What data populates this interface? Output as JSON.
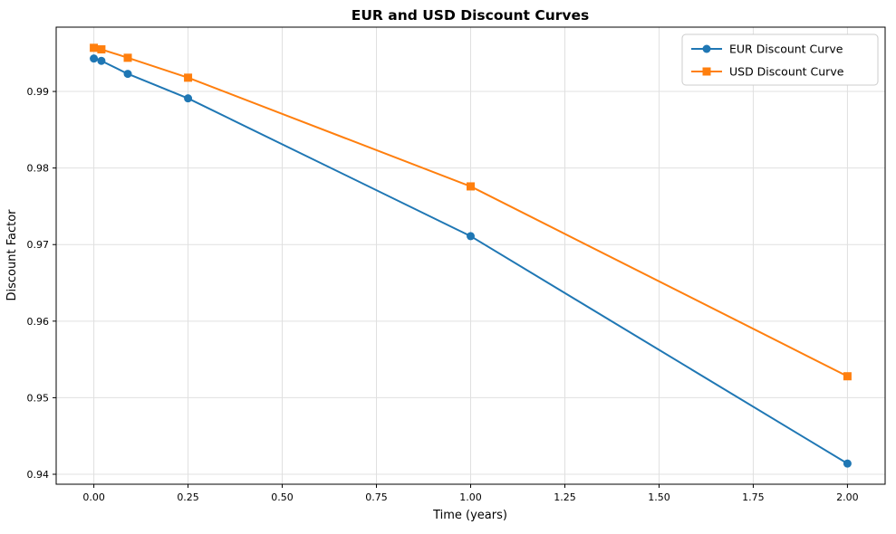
{
  "chart_data": {
    "type": "line",
    "title": "EUR and USD Discount Curves",
    "xlabel": "Time (years)",
    "ylabel": "Discount Factor",
    "xlim": [
      -0.1,
      2.1
    ],
    "ylim": [
      0.9387,
      0.9984
    ],
    "xticks": [
      0.0,
      0.25,
      0.5,
      0.75,
      1.0,
      1.25,
      1.5,
      1.75,
      2.0
    ],
    "xtick_labels": [
      "0.00",
      "0.25",
      "0.50",
      "0.75",
      "1.00",
      "1.25",
      "1.50",
      "1.75",
      "2.00"
    ],
    "yticks": [
      0.94,
      0.95,
      0.96,
      0.97,
      0.98,
      0.99
    ],
    "ytick_labels": [
      "0.94",
      "0.95",
      "0.96",
      "0.97",
      "0.98",
      "0.99"
    ],
    "grid": true,
    "legend_position": "upper right",
    "x": [
      0.0,
      0.02,
      0.09,
      0.25,
      1.0,
      2.0
    ],
    "series": [
      {
        "name": "EUR Discount Curve",
        "color": "#1f77b4",
        "marker": "circle",
        "values": [
          0.9943,
          0.994,
          0.9923,
          0.9891,
          0.9711,
          0.9414
        ]
      },
      {
        "name": "USD Discount Curve",
        "color": "#ff7f0e",
        "marker": "square",
        "values": [
          0.9957,
          0.9955,
          0.9944,
          0.9918,
          0.9776,
          0.9528
        ]
      }
    ],
    "colors": {
      "grid": "#e0e0e0",
      "axis": "#000000",
      "legend_border": "#cccccc",
      "background": "#ffffff"
    }
  }
}
